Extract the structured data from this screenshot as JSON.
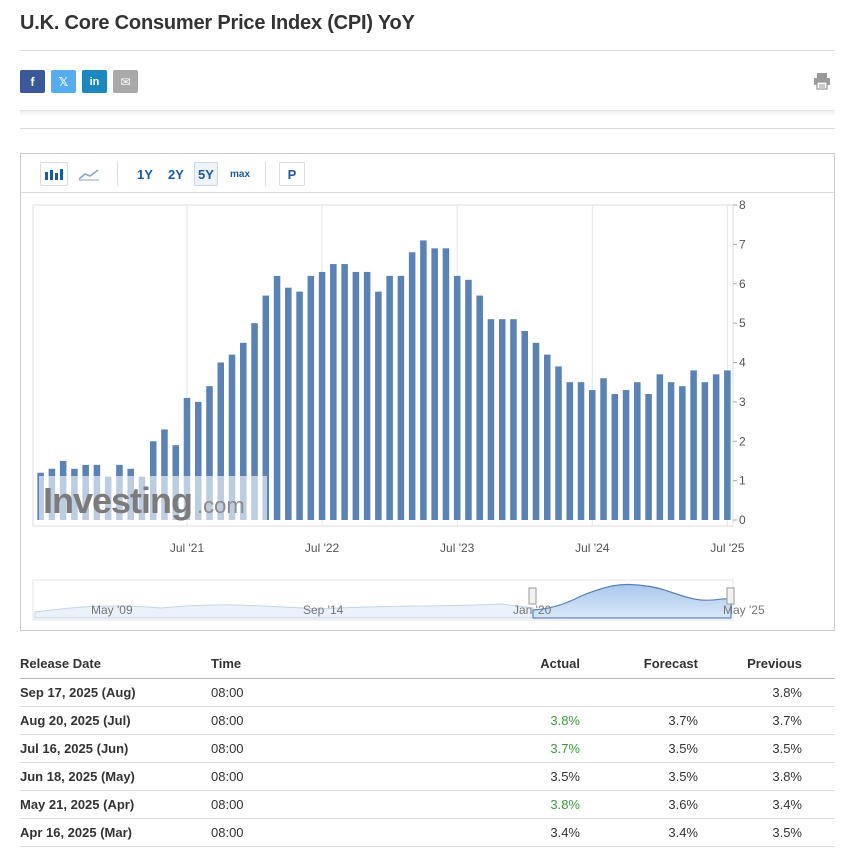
{
  "page_title": "U.K. Core Consumer Price Index (CPI) YoY",
  "share": {
    "facebook_glyph": "f",
    "twitter_glyph": "𝕏",
    "linkedin_glyph": "in",
    "email_glyph": "✉"
  },
  "toolbar": {
    "periods": [
      "1Y",
      "2Y",
      "5Y",
      "max"
    ],
    "selected_period": "5Y",
    "p_label": "P"
  },
  "watermark": {
    "brand": "Investing",
    "suffix": ".com"
  },
  "colors": {
    "bar": "#5b82b5",
    "accent": "#1a5ba6",
    "positive": "#3c9b3c",
    "navigator_fill": "#cfe0f5"
  },
  "navigator": {
    "labels": [
      "May '09",
      "Sep '14",
      "Jan '20",
      "May '25"
    ]
  },
  "chart_data": {
    "type": "bar",
    "title": "",
    "xlabel": "",
    "ylabel": "",
    "ylim": [
      0,
      8
    ],
    "yticks": [
      0,
      1,
      2,
      3,
      4,
      5,
      6,
      7,
      8
    ],
    "y_axis_position": "right",
    "grid": "vertical",
    "x_tick_labels": [
      "Jul '21",
      "Jul '22",
      "Jul '23",
      "Jul '24",
      "Jul '25"
    ],
    "x_tick_index": [
      13,
      25,
      37,
      49,
      61
    ],
    "categories": [
      "Jun '20",
      "Jul '20",
      "Aug '20",
      "Sep '20",
      "Oct '20",
      "Nov '20",
      "Dec '20",
      "Jan '21",
      "Feb '21",
      "Mar '21",
      "Apr '21",
      "May '21",
      "Jun '21",
      "Jul '21",
      "Aug '21",
      "Sep '21",
      "Oct '21",
      "Nov '21",
      "Dec '21",
      "Jan '22",
      "Feb '22",
      "Mar '22",
      "Apr '22",
      "May '22",
      "Jun '22",
      "Jul '22",
      "Aug '22",
      "Sep '22",
      "Oct '22",
      "Nov '22",
      "Dec '22",
      "Jan '23",
      "Feb '23",
      "Mar '23",
      "Apr '23",
      "May '23",
      "Jun '23",
      "Jul '23",
      "Aug '23",
      "Sep '23",
      "Oct '23",
      "Nov '23",
      "Dec '23",
      "Jan '24",
      "Feb '24",
      "Mar '24",
      "Apr '24",
      "May '24",
      "Jun '24",
      "Jul '24",
      "Aug '24",
      "Sep '24",
      "Oct '24",
      "Nov '24",
      "Dec '24",
      "Jan '25",
      "Feb '25",
      "Mar '25",
      "Apr '25",
      "May '25",
      "Jun '25",
      "Jul '25"
    ],
    "values": [
      1.2,
      1.3,
      1.5,
      1.3,
      1.4,
      1.4,
      1.1,
      1.4,
      1.3,
      1.1,
      2.0,
      2.3,
      1.9,
      3.1,
      3.0,
      3.4,
      4.0,
      4.2,
      4.5,
      5.0,
      5.7,
      6.2,
      5.9,
      5.8,
      6.2,
      6.3,
      6.5,
      6.5,
      6.3,
      6.3,
      5.8,
      6.2,
      6.2,
      6.8,
      7.1,
      6.9,
      6.9,
      6.2,
      6.1,
      5.7,
      5.1,
      5.1,
      5.1,
      4.8,
      4.5,
      4.2,
      3.9,
      3.5,
      3.5,
      3.3,
      3.6,
      3.2,
      3.3,
      3.5,
      3.2,
      3.7,
      3.5,
      3.4,
      3.8,
      3.5,
      3.7,
      3.8
    ]
  },
  "table": {
    "headers": {
      "date": "Release Date",
      "time": "Time",
      "actual": "Actual",
      "forecast": "Forecast",
      "previous": "Previous"
    },
    "rows": [
      {
        "date": "Sep 17, 2025 (Aug)",
        "time": "08:00",
        "actual": "",
        "actual_positive": false,
        "forecast": "",
        "previous": "3.8%"
      },
      {
        "date": "Aug 20, 2025 (Jul)",
        "time": "08:00",
        "actual": "3.8%",
        "actual_positive": true,
        "forecast": "3.7%",
        "previous": "3.7%"
      },
      {
        "date": "Jul 16, 2025 (Jun)",
        "time": "08:00",
        "actual": "3.7%",
        "actual_positive": true,
        "forecast": "3.5%",
        "previous": "3.5%"
      },
      {
        "date": "Jun 18, 2025 (May)",
        "time": "08:00",
        "actual": "3.5%",
        "actual_positive": false,
        "forecast": "3.5%",
        "previous": "3.8%"
      },
      {
        "date": "May 21, 2025 (Apr)",
        "time": "08:00",
        "actual": "3.8%",
        "actual_positive": true,
        "forecast": "3.6%",
        "previous": "3.4%"
      },
      {
        "date": "Apr 16, 2025 (Mar)",
        "time": "08:00",
        "actual": "3.4%",
        "actual_positive": false,
        "forecast": "3.4%",
        "previous": "3.5%"
      }
    ]
  }
}
